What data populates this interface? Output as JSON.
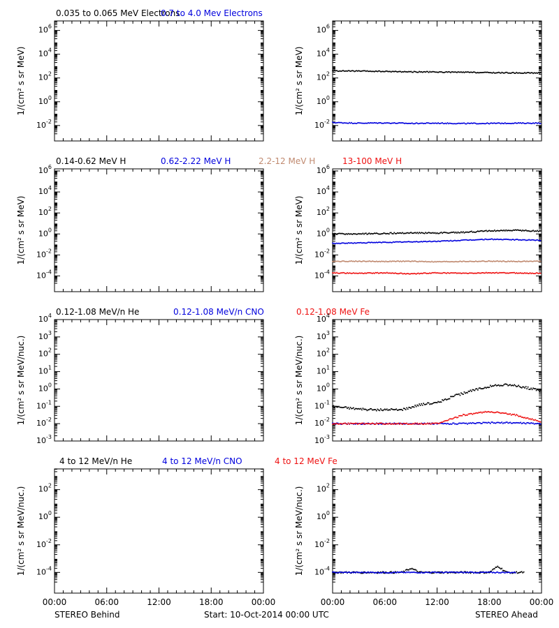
{
  "colors": {
    "black": "#000000",
    "blue": "#0000dd",
    "tan": "#c08a70",
    "red": "#ee1111"
  },
  "footer": {
    "left": "STEREO Behind",
    "center": "Start: 10-Oct-2014 00:00 UTC",
    "right": "STEREO Ahead"
  },
  "chart_data": [
    {
      "type": "scatter",
      "row": 0,
      "side": "behind",
      "titles": [
        {
          "text": "0.035 to 0.065 MeV Electrons",
          "color": "black"
        },
        {
          "text": "0.7 to 4.0 Mev Electrons",
          "color": "blue"
        }
      ],
      "ylabel": "1/(cm² s sr MeV)",
      "yscale": "log",
      "ylim_exp": [
        -3.3,
        6.8
      ],
      "yticks_exp": [
        -2,
        0,
        2,
        4,
        6
      ],
      "xlim": [
        0,
        24
      ],
      "xticks": [
        "00:00",
        "06:00",
        "12:00",
        "18:00",
        "00:00"
      ],
      "series": []
    },
    {
      "type": "scatter",
      "row": 0,
      "side": "ahead",
      "titles": [],
      "ylabel": "1/(cm² s sr MeV)",
      "yscale": "log",
      "ylim_exp": [
        -3.3,
        6.8
      ],
      "yticks_exp": [
        -2,
        0,
        2,
        4,
        6
      ],
      "xlim": [
        0,
        24
      ],
      "xticks": [
        "00:00",
        "06:00",
        "12:00",
        "18:00",
        "00:00"
      ],
      "series": [
        {
          "color": "black",
          "x": [
            0,
            3,
            6,
            9,
            12,
            15,
            18,
            21,
            24
          ],
          "y_exp": [
            2.6,
            2.58,
            2.55,
            2.52,
            2.5,
            2.48,
            2.45,
            2.43,
            2.42
          ]
        },
        {
          "color": "blue",
          "x": [
            0,
            3,
            6,
            9,
            12,
            15,
            18,
            21,
            24
          ],
          "y_exp": [
            -1.75,
            -1.8,
            -1.78,
            -1.82,
            -1.8,
            -1.83,
            -1.82,
            -1.8,
            -1.8
          ]
        }
      ]
    },
    {
      "type": "scatter",
      "row": 1,
      "side": "behind",
      "titles": [
        {
          "text": "0.14-0.62 MeV H",
          "color": "black"
        },
        {
          "text": "0.62-2.22 MeV H",
          "color": "blue"
        },
        {
          "text": "2.2-12 MeV H",
          "color": "tan"
        },
        {
          "text": "13-100 MeV H",
          "color": "red"
        }
      ],
      "ylabel": "1/(cm² s sr MeV)",
      "yscale": "log",
      "ylim_exp": [
        -5.5,
        6.2
      ],
      "yticks_exp": [
        -4,
        -2,
        0,
        2,
        4,
        6
      ],
      "xlim": [
        0,
        24
      ],
      "xticks": [
        "00:00",
        "06:00",
        "12:00",
        "18:00",
        "00:00"
      ],
      "series": []
    },
    {
      "type": "scatter",
      "row": 1,
      "side": "ahead",
      "titles": [],
      "ylabel": "1/(cm² s sr MeV)",
      "yscale": "log",
      "ylim_exp": [
        -5.5,
        6.2
      ],
      "yticks_exp": [
        -4,
        -2,
        0,
        2,
        4,
        6
      ],
      "xlim": [
        0,
        24
      ],
      "xticks": [
        "00:00",
        "06:00",
        "12:00",
        "18:00",
        "00:00"
      ],
      "series": [
        {
          "color": "black",
          "x": [
            0,
            3,
            6,
            9,
            12,
            15,
            18,
            21,
            24
          ],
          "y_exp": [
            0.0,
            0.0,
            0.05,
            0.1,
            0.1,
            0.15,
            0.3,
            0.35,
            0.25
          ]
        },
        {
          "color": "blue",
          "x": [
            0,
            3,
            6,
            9,
            12,
            15,
            18,
            21,
            24
          ],
          "y_exp": [
            -0.9,
            -0.85,
            -0.8,
            -0.75,
            -0.7,
            -0.6,
            -0.5,
            -0.55,
            -0.6
          ]
        },
        {
          "color": "tan",
          "x": [
            0,
            3,
            6,
            9,
            12,
            15,
            18,
            21,
            24
          ],
          "y_exp": [
            -2.6,
            -2.6,
            -2.62,
            -2.6,
            -2.65,
            -2.62,
            -2.6,
            -2.62,
            -2.6
          ]
        },
        {
          "color": "red",
          "x": [
            0,
            3,
            6,
            9,
            12,
            15,
            18,
            21,
            24
          ],
          "y_exp": [
            -3.7,
            -3.75,
            -3.7,
            -3.8,
            -3.7,
            -3.75,
            -3.7,
            -3.72,
            -3.75
          ]
        }
      ]
    },
    {
      "type": "scatter",
      "row": 2,
      "side": "behind",
      "titles": [
        {
          "text": "0.12-1.08 MeV/n He",
          "color": "black"
        },
        {
          "text": "0.12-1.08 MeV/n CNO",
          "color": "blue"
        },
        {
          "text": "0.12-1.08 MeV Fe",
          "color": "red"
        }
      ],
      "ylabel": "1/(cm² s sr MeV/nuc.)",
      "yscale": "log",
      "ylim_exp": [
        -3,
        4
      ],
      "yticks_exp": [
        -3,
        -2,
        -1,
        0,
        1,
        2,
        3,
        4
      ],
      "xlim": [
        0,
        24
      ],
      "xticks": [
        "00:00",
        "06:00",
        "12:00",
        "18:00",
        "00:00"
      ],
      "series": []
    },
    {
      "type": "scatter",
      "row": 2,
      "side": "ahead",
      "titles": [],
      "ylabel": "1/(cm² s sr MeV/nuc.)",
      "yscale": "log",
      "ylim_exp": [
        -3,
        4
      ],
      "yticks_exp": [
        -3,
        -2,
        -1,
        0,
        1,
        2,
        3,
        4
      ],
      "xlim": [
        0,
        24
      ],
      "xticks": [
        "00:00",
        "06:00",
        "12:00",
        "18:00",
        "00:00"
      ],
      "series": [
        {
          "color": "black",
          "x": [
            0,
            2,
            4,
            6,
            8,
            10,
            12,
            14,
            16,
            18,
            19,
            20,
            22,
            24
          ],
          "y_exp": [
            -1.0,
            -1.1,
            -1.2,
            -1.2,
            -1.2,
            -0.9,
            -0.8,
            -0.4,
            -0.1,
            0.15,
            0.2,
            0.25,
            0.1,
            -0.1
          ]
        },
        {
          "color": "blue",
          "x": [
            0,
            3,
            6,
            9,
            12,
            15,
            18,
            21,
            24
          ],
          "y_exp": [
            -2.0,
            -2.0,
            -2.0,
            -2.0,
            -2.0,
            -2.0,
            -1.95,
            -1.95,
            -2.0
          ]
        },
        {
          "color": "red",
          "x": [
            0,
            3,
            6,
            9,
            12,
            15,
            18,
            21,
            24
          ],
          "y_exp": [
            -2.0,
            -2.0,
            -2.0,
            -2.0,
            -2.0,
            -1.5,
            -1.3,
            -1.5,
            -1.9
          ]
        }
      ]
    },
    {
      "type": "scatter",
      "row": 3,
      "side": "behind",
      "titles": [
        {
          "text": "4 to 12 MeV/n He",
          "color": "black"
        },
        {
          "text": "4 to 12 MeV/n CNO",
          "color": "blue"
        },
        {
          "text": "4 to 12 MeV Fe",
          "color": "red"
        }
      ],
      "ylabel": "1/(cm² s sr MeV/nuc.)",
      "yscale": "log",
      "ylim_exp": [
        -5.5,
        3.5
      ],
      "yticks_exp": [
        -4,
        -2,
        0,
        2
      ],
      "xlim": [
        0,
        24
      ],
      "xticks": [
        "00:00",
        "06:00",
        "12:00",
        "18:00",
        "00:00"
      ],
      "series": []
    },
    {
      "type": "scatter",
      "row": 3,
      "side": "ahead",
      "titles": [],
      "ylabel": "1/(cm² s sr MeV/nuc.)",
      "yscale": "log",
      "ylim_exp": [
        -5.5,
        3.5
      ],
      "yticks_exp": [
        -4,
        -2,
        0,
        2
      ],
      "xlim": [
        0,
        24
      ],
      "xticks": [
        "00:00",
        "06:00",
        "12:00",
        "18:00",
        "00:00"
      ],
      "series": [
        {
          "color": "black",
          "x": [
            0,
            2,
            4,
            6,
            8,
            9,
            10,
            12,
            14,
            16,
            18,
            19,
            20,
            22
          ],
          "y_exp": [
            -4.0,
            -4.0,
            -4.0,
            -4.0,
            -4.0,
            -3.7,
            -4.0,
            -4.0,
            -4.0,
            -4.0,
            -4.0,
            -3.55,
            -4.0,
            -4.0
          ]
        },
        {
          "color": "blue",
          "x": [
            0,
            3,
            6,
            9,
            12,
            15,
            18,
            21
          ],
          "y_exp": [
            -4.0,
            -4.0,
            -4.0,
            -4.0,
            -4.0,
            -4.0,
            -4.0,
            -4.0
          ]
        }
      ]
    }
  ]
}
